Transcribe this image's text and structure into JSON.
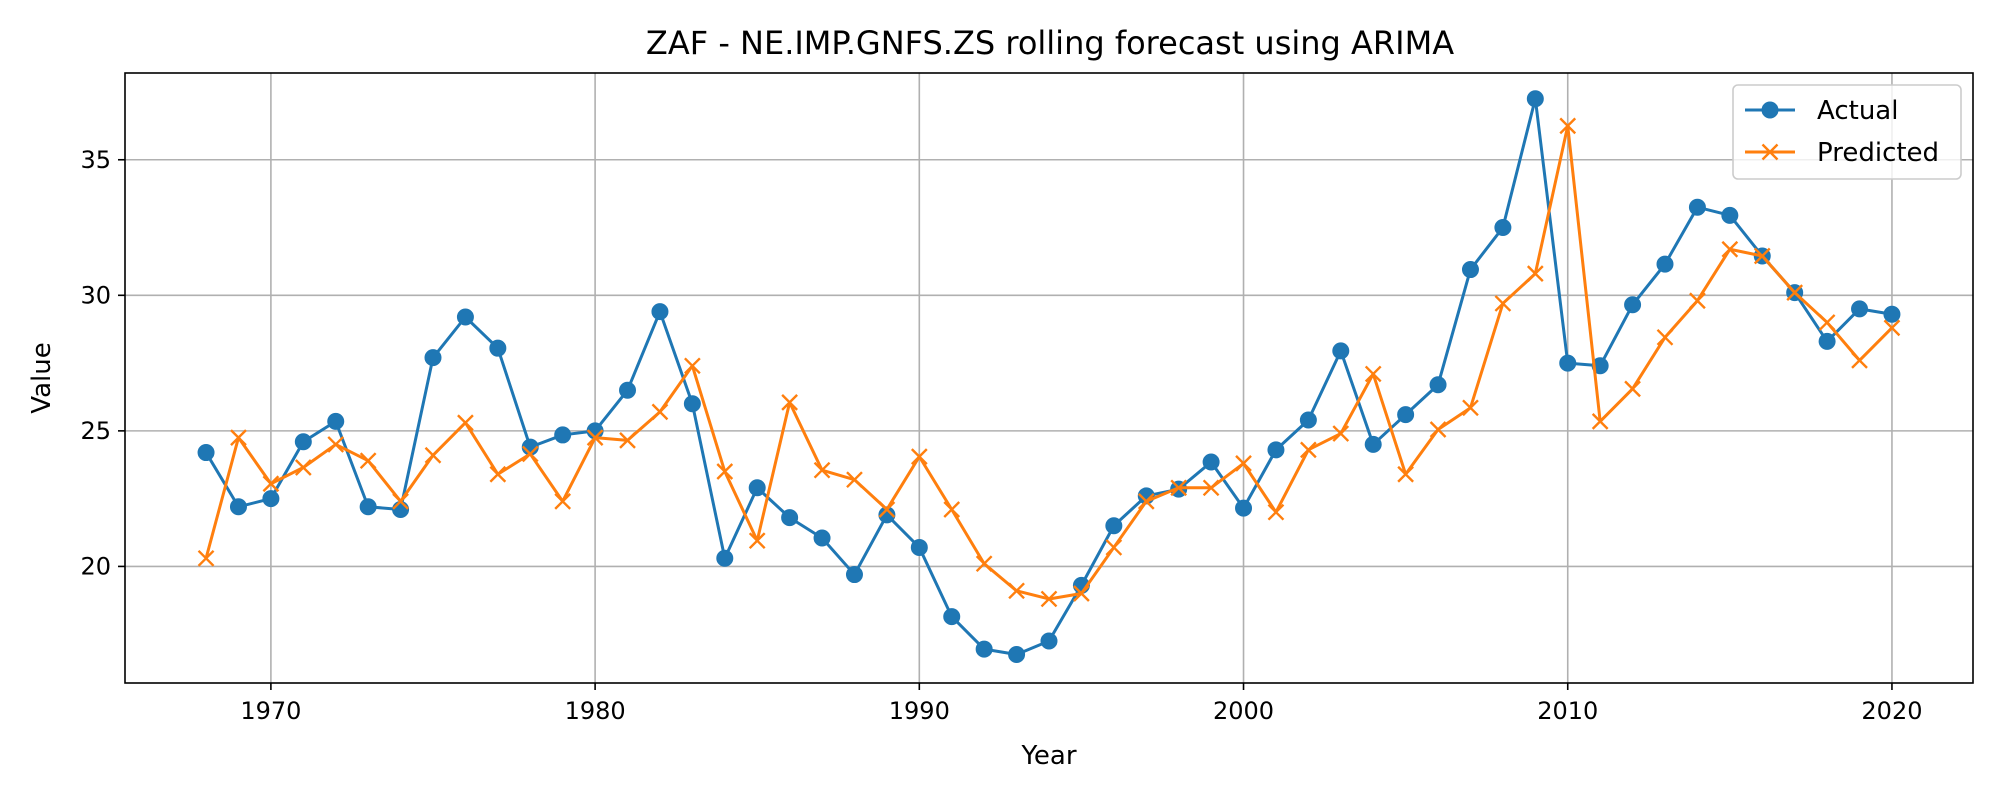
{
  "chart_data": {
    "type": "line",
    "title": "ZAF - NE.IMP.GNFS.ZS rolling forecast using ARIMA",
    "xlabel": "Year",
    "ylabel": "Value",
    "xlim": [
      1965.5,
      2022.5
    ],
    "ylim": [
      15.7,
      38.2
    ],
    "xticks": [
      1970,
      1980,
      1990,
      2000,
      2010,
      2020
    ],
    "yticks": [
      20,
      25,
      30,
      35
    ],
    "grid": true,
    "legend_position": "top-right",
    "x": [
      1968,
      1969,
      1970,
      1971,
      1972,
      1973,
      1974,
      1975,
      1976,
      1977,
      1978,
      1979,
      1980,
      1981,
      1982,
      1983,
      1984,
      1985,
      1986,
      1987,
      1988,
      1989,
      1990,
      1991,
      1992,
      1993,
      1994,
      1995,
      1996,
      1997,
      1998,
      1999,
      2000,
      2001,
      2002,
      2003,
      2004,
      2005,
      2006,
      2007,
      2008,
      2009,
      2010,
      2011,
      2012,
      2013,
      2014,
      2015,
      2016,
      2017,
      2018,
      2019,
      2020
    ],
    "series": [
      {
        "name": "Actual",
        "color": "#1f77b4",
        "marker": "circle",
        "values": [
          24.2,
          22.2,
          22.5,
          24.6,
          25.35,
          22.2,
          22.1,
          27.7,
          29.2,
          28.05,
          24.4,
          24.85,
          25.0,
          26.5,
          29.4,
          26.0,
          20.3,
          22.9,
          21.8,
          21.05,
          19.7,
          21.9,
          20.7,
          18.15,
          16.95,
          16.75,
          17.25,
          19.3,
          21.5,
          22.6,
          22.85,
          23.85,
          22.15,
          24.3,
          25.4,
          27.95,
          24.5,
          25.6,
          26.7,
          30.95,
          32.5,
          37.25,
          27.5,
          27.4,
          29.65,
          31.15,
          33.25,
          32.95,
          31.45,
          30.1,
          28.3,
          29.5,
          29.3
        ]
      },
      {
        "name": "Predicted",
        "color": "#ff7f0e",
        "marker": "x",
        "values": [
          20.3,
          24.75,
          23.05,
          23.65,
          24.5,
          23.9,
          22.4,
          24.1,
          25.3,
          23.4,
          24.15,
          22.4,
          24.75,
          24.65,
          25.7,
          27.4,
          23.5,
          20.95,
          26.05,
          23.55,
          23.2,
          22.1,
          24.05,
          22.1,
          20.1,
          19.1,
          18.8,
          19.0,
          20.7,
          22.4,
          22.9,
          22.9,
          23.8,
          22.0,
          24.3,
          24.9,
          27.1,
          23.4,
          25.05,
          25.85,
          29.7,
          30.8,
          36.25,
          25.35,
          26.55,
          28.45,
          29.8,
          31.7,
          31.45,
          30.1,
          29.0,
          27.6,
          28.8
        ]
      }
    ]
  }
}
